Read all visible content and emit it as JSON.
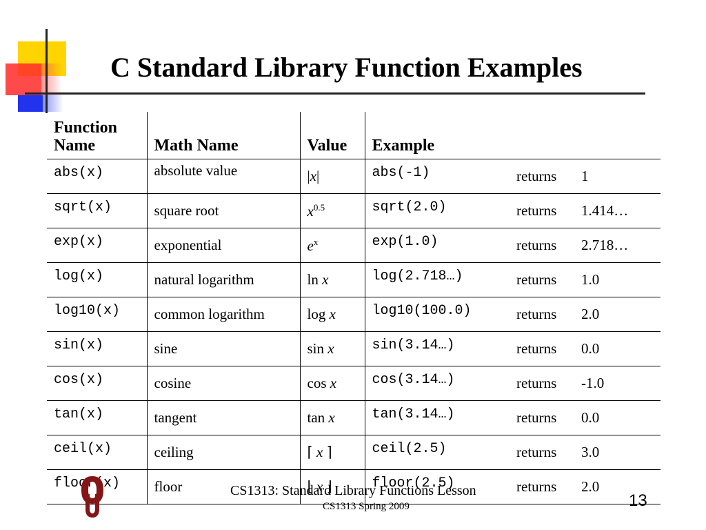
{
  "slide": {
    "title": "C Standard Library Function Examples"
  },
  "table": {
    "headers": {
      "function_name": "Function Name",
      "math_name": "Math Name",
      "value": "Value",
      "example": "Example"
    },
    "rows": [
      {
        "function": "abs(x)",
        "math_name": "absolute value",
        "value": "|x|",
        "example": "abs(-1)",
        "returns": "returns",
        "result": "1"
      },
      {
        "function": "sqrt(x)",
        "math_name": "square root",
        "value": "x^0.5",
        "example": "sqrt(2.0)",
        "returns": "returns",
        "result": "1.414…"
      },
      {
        "function": "exp(x)",
        "math_name": "exponential",
        "value": "e^x",
        "example": "exp(1.0)",
        "returns": "returns",
        "result": "2.718…"
      },
      {
        "function": "log(x)",
        "math_name": "natural logarithm",
        "value": "ln x",
        "example": "log(2.718…)",
        "returns": "returns",
        "result": "1.0"
      },
      {
        "function": "log10(x)",
        "math_name": "common logarithm",
        "value": "log x",
        "example": "log10(100.0)",
        "returns": "returns",
        "result": "2.0"
      },
      {
        "function": "sin(x)",
        "math_name": "sine",
        "value": "sin x",
        "example": "sin(3.14…)",
        "returns": "returns",
        "result": "0.0"
      },
      {
        "function": "cos(x)",
        "math_name": "cosine",
        "value": "cos x",
        "example": "cos(3.14…)",
        "returns": "returns",
        "result": "-1.0"
      },
      {
        "function": "tan(x)",
        "math_name": "tangent",
        "value": "tan x",
        "example": "tan(3.14…)",
        "returns": "returns",
        "result": "0.0"
      },
      {
        "function": "ceil(x)",
        "math_name": "ceiling",
        "value": "⌈ x ⌉",
        "example": "ceil(2.5)",
        "returns": "returns",
        "result": "3.0"
      },
      {
        "function": "floor(x)",
        "math_name": "floor",
        "value": "⌊ x ⌋",
        "example": "floor(2.5)",
        "returns": "returns",
        "result": "2.0"
      }
    ]
  },
  "footer": {
    "line1": "CS1313: Standard Library Functions Lesson",
    "line2": "CS1313 Spring 2009",
    "page_number": "13",
    "logo_icon": "ou-logo-icon"
  },
  "colors": {
    "deco_yellow": "#ffd400",
    "deco_red": "#ff2a2a",
    "deco_blue": "#2233ee",
    "logo_crimson": "#841617"
  }
}
